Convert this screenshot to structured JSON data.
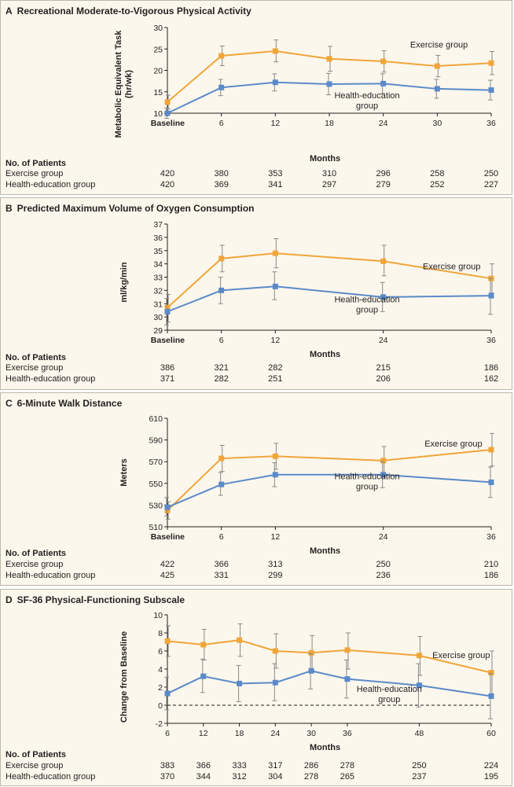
{
  "colors": {
    "exercise": "#f0a53a",
    "health": "#5b8ac9",
    "error": "#8a8a8a",
    "axis": "#231f20"
  },
  "table_header": "No. of Patients",
  "xaxis_label": "Months",
  "chart_data": [
    {
      "type": "line",
      "letter": "A",
      "title": "Recreational Moderate-to-Vigorous Physical Activity",
      "ylabel": "Metabolic Equivalent Task (hr/wk)",
      "xlabel": "Months",
      "xlim": [
        0,
        36
      ],
      "ylim": [
        10,
        30
      ],
      "yticks": [
        10,
        15,
        20,
        25,
        30
      ],
      "xticks": [
        0,
        6,
        12,
        18,
        24,
        30,
        36
      ],
      "xtick_labels": [
        "Baseline",
        "6",
        "12",
        "18",
        "24",
        "30",
        "36"
      ],
      "series": [
        {
          "name": "Exercise group",
          "x": [
            0,
            6,
            12,
            18,
            24,
            30,
            36
          ],
          "values": [
            12.6,
            23.4,
            24.5,
            22.7,
            22.1,
            21.0,
            21.7
          ],
          "err_low": [
            11.0,
            21.1,
            22.0,
            19.8,
            19.6,
            18.5,
            19.0
          ],
          "err_high": [
            14.2,
            25.7,
            27.1,
            25.6,
            24.6,
            23.5,
            24.4
          ]
        },
        {
          "name": "Health-education group",
          "x": [
            0,
            6,
            12,
            18,
            24,
            30,
            36
          ],
          "values": [
            10.0,
            16.0,
            17.2,
            16.8,
            16.9,
            15.7,
            15.4
          ],
          "err_low": [
            8.8,
            14.1,
            15.2,
            14.3,
            14.6,
            13.5,
            13.1
          ],
          "err_high": [
            11.2,
            17.9,
            19.2,
            19.3,
            19.2,
            17.9,
            17.7
          ]
        }
      ],
      "annotations": [
        {
          "lines": [
            "Exercise group"
          ],
          "x": 30.2,
          "y": 25.3
        },
        {
          "lines": [
            "Health-education",
            "group"
          ],
          "x": 22.2,
          "y": 13.5
        }
      ],
      "patients": {
        "exercise": [
          "420",
          "380",
          "353",
          "310",
          "296",
          "258",
          "250"
        ],
        "health": [
          "420",
          "369",
          "341",
          "297",
          "279",
          "252",
          "227"
        ]
      }
    },
    {
      "type": "line",
      "letter": "B",
      "title": "Predicted Maximum Volume of Oxygen Consumption",
      "ylabel": "ml/kg/min",
      "xlabel": "Months",
      "xlim": [
        0,
        36
      ],
      "ylim": [
        29,
        37
      ],
      "yticks": [
        29,
        30,
        31,
        32,
        33,
        34,
        35,
        36,
        37
      ],
      "xticks": [
        0,
        6,
        12,
        24,
        36
      ],
      "xtick_labels": [
        "Baseline",
        "6",
        "12",
        "24",
        "36"
      ],
      "series": [
        {
          "name": "Exercise group",
          "x": [
            0,
            6,
            12,
            24,
            36
          ],
          "values": [
            30.7,
            34.4,
            34.8,
            34.2,
            32.9
          ],
          "err_low": [
            29.6,
            33.4,
            33.7,
            33.1,
            31.8
          ],
          "err_high": [
            31.7,
            35.4,
            35.9,
            35.4,
            34.0
          ]
        },
        {
          "name": "Health-education group",
          "x": [
            0,
            6,
            12,
            24,
            36
          ],
          "values": [
            30.4,
            32.0,
            32.3,
            31.5,
            31.6
          ],
          "err_low": [
            29.4,
            31.0,
            31.3,
            30.4,
            30.2
          ],
          "err_high": [
            31.4,
            33.0,
            33.4,
            32.6,
            32.9
          ]
        }
      ],
      "annotations": [
        {
          "lines": [
            "Exercise group"
          ],
          "x": 31.6,
          "y": 33.6
        },
        {
          "lines": [
            "Health-education",
            "group"
          ],
          "x": 22.2,
          "y": 31.1
        }
      ],
      "patients": {
        "exercise": [
          "386",
          "321",
          "282",
          "215",
          "186"
        ],
        "health": [
          "371",
          "282",
          "251",
          "206",
          "162"
        ]
      }
    },
    {
      "type": "line",
      "letter": "C",
      "title": "6-Minute Walk Distance",
      "ylabel": "Meters",
      "xlabel": "Months",
      "xlim": [
        0,
        36
      ],
      "ylim": [
        510,
        610
      ],
      "yticks": [
        510,
        530,
        550,
        570,
        590,
        610
      ],
      "xticks": [
        0,
        6,
        12,
        24,
        36
      ],
      "xtick_labels": [
        "Baseline",
        "6",
        "12",
        "24",
        "36"
      ],
      "series": [
        {
          "name": "Exercise group",
          "x": [
            0,
            6,
            12,
            24,
            36
          ],
          "values": [
            525,
            573,
            575,
            571,
            581
          ],
          "err_low": [
            517,
            561,
            563,
            558,
            566
          ],
          "err_high": [
            533,
            585,
            587,
            584,
            596
          ]
        },
        {
          "name": "Health-education group",
          "x": [
            0,
            6,
            12,
            24,
            36
          ],
          "values": [
            528,
            549,
            558,
            558,
            551
          ],
          "err_low": [
            520,
            539,
            547,
            546,
            537
          ],
          "err_high": [
            537,
            560,
            569,
            570,
            565
          ]
        }
      ],
      "annotations": [
        {
          "lines": [
            "Exercise group"
          ],
          "x": 31.8,
          "y": 584
        },
        {
          "lines": [
            "Health-education",
            "group"
          ],
          "x": 22.2,
          "y": 554
        }
      ],
      "patients": {
        "exercise": [
          "422",
          "366",
          "313",
          "250",
          "210"
        ],
        "health": [
          "425",
          "331",
          "299",
          "236",
          "186"
        ]
      }
    },
    {
      "type": "line",
      "letter": "D",
      "title": "SF-36 Physical-Functioning Subscale",
      "ylabel": "Change from Baseline",
      "xlabel": "Months",
      "xlim": [
        6,
        60
      ],
      "ylim": [
        -2,
        10
      ],
      "yticks": [
        -2,
        0,
        2,
        4,
        6,
        8,
        10
      ],
      "xticks": [
        6,
        12,
        18,
        24,
        30,
        36,
        48,
        60
      ],
      "xtick_labels": [
        "6",
        "12",
        "18",
        "24",
        "30",
        "36",
        "48",
        "60"
      ],
      "reference_line": 0,
      "series": [
        {
          "name": "Exercise group",
          "x": [
            6,
            12,
            18,
            24,
            30,
            36,
            48,
            60
          ],
          "values": [
            7.1,
            6.7,
            7.2,
            6.0,
            5.8,
            6.1,
            5.5,
            3.6
          ],
          "err_low": [
            5.4,
            5.0,
            5.4,
            4.1,
            3.8,
            4.0,
            3.3,
            1.2
          ],
          "err_high": [
            8.8,
            8.4,
            9.0,
            7.9,
            7.7,
            8.0,
            7.6,
            6.0
          ]
        },
        {
          "name": "Health-education group",
          "x": [
            6,
            12,
            18,
            24,
            30,
            36,
            48,
            60
          ],
          "values": [
            1.3,
            3.2,
            2.4,
            2.5,
            3.8,
            2.9,
            2.2,
            1.0
          ],
          "err_low": [
            -0.5,
            1.4,
            0.4,
            0.5,
            1.8,
            0.8,
            -0.2,
            -1.5
          ],
          "err_high": [
            3.1,
            5.1,
            4.4,
            4.6,
            5.7,
            5.0,
            4.6,
            3.5
          ]
        }
      ],
      "annotations": [
        {
          "lines": [
            "Exercise group"
          ],
          "x": 55.0,
          "y": 5.2
        },
        {
          "lines": [
            "Health-education",
            "group"
          ],
          "x": 43.0,
          "y": 1.5
        }
      ],
      "patients": {
        "exercise": [
          "383",
          "366",
          "333",
          "317",
          "286",
          "278",
          "250",
          "224"
        ],
        "health": [
          "370",
          "344",
          "312",
          "304",
          "278",
          "265",
          "237",
          "195"
        ]
      }
    }
  ]
}
